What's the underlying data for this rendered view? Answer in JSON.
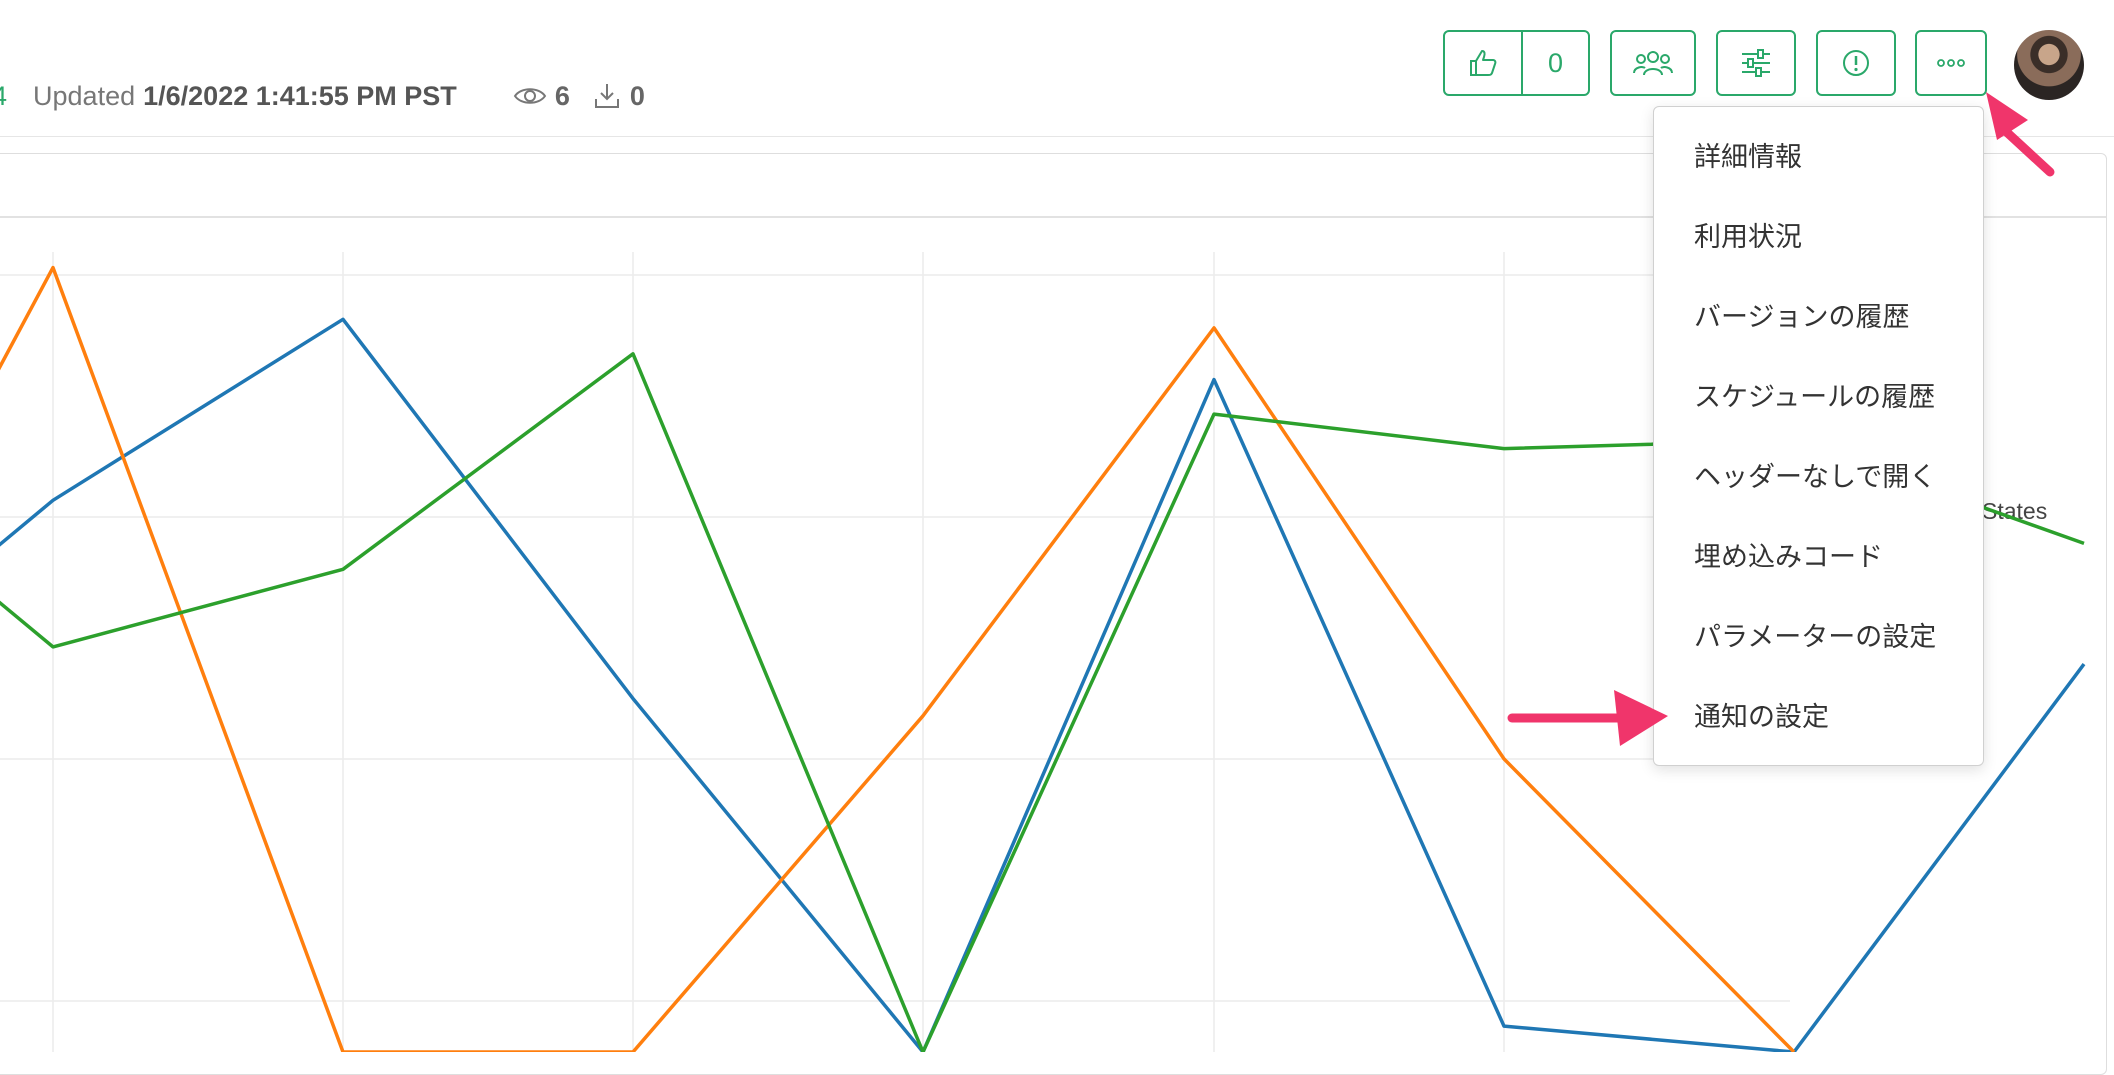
{
  "header": {
    "meta": {
      "cut_text": "4",
      "updated_label": "Updated",
      "updated_value": "1/6/2022 1:41:55 PM PST",
      "views": "6",
      "downloads": "0"
    },
    "like_count": "0",
    "icons": {
      "like": "thumbs-up-icon",
      "share": "people-icon",
      "params": "sliders-icon",
      "alert": "exclamation-circle-icon",
      "more": "ellipsis-icon",
      "views": "eye-icon",
      "downloads": "download-icon"
    }
  },
  "dropdown": {
    "items": [
      "詳細情報",
      "利用状況",
      "バージョンの履歴",
      "スケジュールの履歴",
      "ヘッダーなしで開く",
      "埋め込みコード",
      "パラメーターの設定",
      "通知の設定"
    ]
  },
  "chart_data": {
    "type": "line",
    "legend_partial": "States",
    "series": [
      {
        "color": "#1f77b4",
        "values": [
          0.56,
          0.64,
          0.85,
          0.41,
          0.0,
          0.78,
          0.03,
          0.0,
          0.45
        ]
      },
      {
        "color": "#ff7f0e",
        "values": [
          0.73,
          0.91,
          0.0,
          0.0,
          0.39,
          0.84,
          0.34,
          0.0
        ]
      },
      {
        "color": "#2ca02c",
        "values": [
          0.55,
          0.47,
          0.56,
          0.81,
          0.0,
          0.74,
          0.7,
          0.71,
          0.59
        ]
      }
    ],
    "grid": true
  },
  "colors": {
    "accent": "#2aa86a",
    "annotation_arrow": "#f0356b"
  }
}
